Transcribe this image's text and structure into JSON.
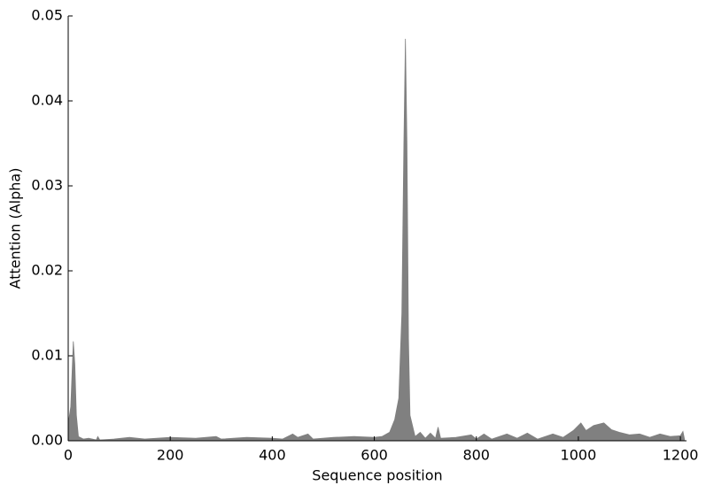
{
  "chart_data": {
    "type": "area",
    "xlabel": "Sequence position",
    "ylabel": "Attention (Alpha)",
    "color": "#808080",
    "xlim": [
      0,
      1212
    ],
    "ylim": [
      0,
      0.05
    ],
    "xticks": [
      0,
      200,
      400,
      600,
      800,
      1000,
      1200
    ],
    "yticks": [
      {
        "value": 0,
        "label": "0.00"
      },
      {
        "value": 0.01,
        "label": "0.01"
      },
      {
        "value": 0.02,
        "label": "0.02"
      },
      {
        "value": 0.03,
        "label": "0.03"
      },
      {
        "value": 0.04,
        "label": "0.04"
      },
      {
        "value": 0.05,
        "label": "0.05"
      }
    ],
    "x": [
      0,
      5,
      10,
      13,
      16,
      20,
      30,
      40,
      55,
      58,
      62,
      90,
      120,
      150,
      200,
      250,
      290,
      300,
      350,
      400,
      420,
      440,
      450,
      470,
      480,
      520,
      560,
      600,
      615,
      630,
      640,
      648,
      654,
      658,
      661,
      664,
      667,
      670,
      680,
      690,
      700,
      710,
      720,
      725,
      730,
      760,
      790,
      800,
      815,
      830,
      860,
      880,
      900,
      920,
      950,
      970,
      990,
      1005,
      1015,
      1030,
      1050,
      1065,
      1080,
      1100,
      1120,
      1140,
      1160,
      1180,
      1200,
      1205,
      1208
    ],
    "values": [
      0.002,
      0.004,
      0.0117,
      0.009,
      0.003,
      0.0005,
      0.0002,
      0.0003,
      0.0001,
      0.0005,
      0.0001,
      0.0002,
      0.0004,
      0.0002,
      0.0004,
      0.0003,
      0.0005,
      0.0002,
      0.0004,
      0.0003,
      0.0002,
      0.0008,
      0.0004,
      0.0008,
      0.0002,
      0.0004,
      0.0005,
      0.0004,
      0.0005,
      0.001,
      0.0025,
      0.005,
      0.015,
      0.035,
      0.0473,
      0.035,
      0.012,
      0.003,
      0.0005,
      0.001,
      0.0003,
      0.0009,
      0.0003,
      0.0016,
      0.0003,
      0.0004,
      0.0007,
      0.0002,
      0.0008,
      0.0002,
      0.0008,
      0.0003,
      0.0009,
      0.0002,
      0.0008,
      0.0004,
      0.0012,
      0.0021,
      0.0012,
      0.0018,
      0.0021,
      0.0013,
      0.001,
      0.0007,
      0.0008,
      0.0004,
      0.0008,
      0.0005,
      0.0006,
      0.0011,
      0.0002
    ]
  }
}
